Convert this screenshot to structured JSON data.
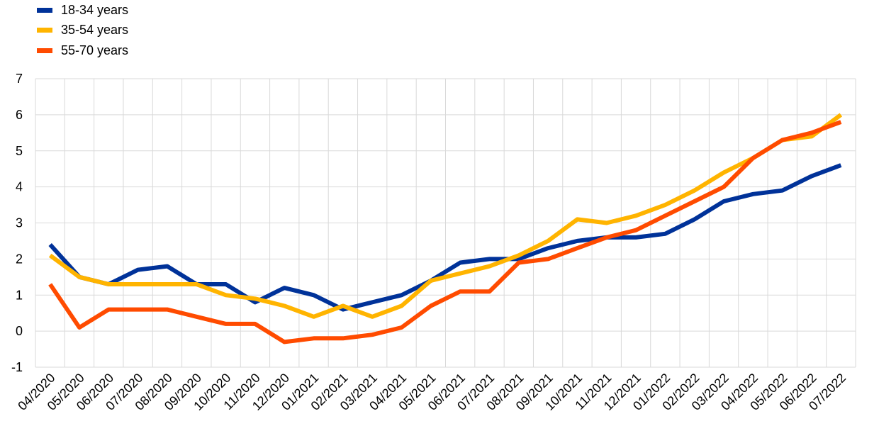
{
  "chart_data": {
    "type": "line",
    "title": "",
    "xlabel": "",
    "ylabel": "",
    "ylim": [
      -1,
      7
    ],
    "yticks": [
      -1,
      0,
      1,
      2,
      3,
      4,
      5,
      6,
      7
    ],
    "grid": true,
    "legend_position": "top-left",
    "categories": [
      "04/2020",
      "05/2020",
      "06/2020",
      "07/2020",
      "08/2020",
      "09/2020",
      "10/2020",
      "11/2020",
      "12/2020",
      "01/2021",
      "02/2021",
      "03/2021",
      "04/2021",
      "05/2021",
      "06/2021",
      "07/2021",
      "08/2021",
      "09/2021",
      "10/2021",
      "11/2021",
      "12/2021",
      "01/2022",
      "02/2022",
      "03/2022",
      "04/2022",
      "05/2022",
      "06/2022",
      "07/2022"
    ],
    "series": [
      {
        "name": "18-34 years",
        "color": "#003299",
        "values": [
          2.4,
          1.5,
          1.3,
          1.7,
          1.8,
          1.3,
          1.3,
          0.8,
          1.2,
          1.0,
          0.6,
          0.8,
          1.0,
          1.4,
          1.9,
          2.0,
          2.0,
          2.3,
          2.5,
          2.6,
          2.6,
          2.7,
          3.1,
          3.6,
          3.8,
          3.9,
          4.3,
          4.6
        ]
      },
      {
        "name": "35-54 years",
        "color": "#FFB400",
        "values": [
          2.1,
          1.5,
          1.3,
          1.3,
          1.3,
          1.3,
          1.0,
          0.9,
          0.7,
          0.4,
          0.7,
          0.4,
          0.7,
          1.4,
          1.6,
          1.8,
          2.1,
          2.5,
          3.1,
          3.0,
          3.2,
          3.5,
          3.9,
          4.4,
          4.8,
          5.3,
          5.4,
          6.0
        ]
      },
      {
        "name": "55-70 years",
        "color": "#FF4B00",
        "values": [
          1.3,
          0.1,
          0.6,
          0.6,
          0.6,
          0.4,
          0.2,
          0.2,
          -0.3,
          -0.2,
          -0.2,
          -0.1,
          0.1,
          0.7,
          1.1,
          1.1,
          1.9,
          2.0,
          2.3,
          2.6,
          2.8,
          3.2,
          3.6,
          4.0,
          4.8,
          5.3,
          5.5,
          5.8
        ]
      }
    ]
  }
}
